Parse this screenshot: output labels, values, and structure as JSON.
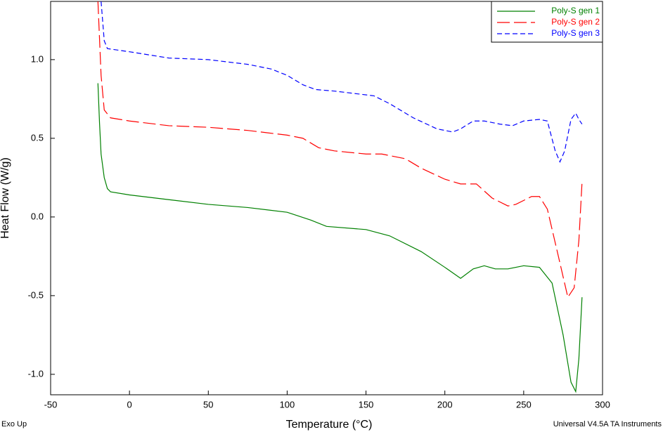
{
  "chart_data": {
    "type": "line",
    "xlabel": "Temperature (°C)",
    "ylabel": "Heat Flow (W/g)",
    "annotations": [
      "Exo Up",
      "Universal V4.5A TA Instruments"
    ],
    "xlim": [
      -50,
      300
    ],
    "xticks": [
      -50,
      0,
      50,
      100,
      150,
      200,
      250,
      300
    ],
    "ylim": [
      -1.13,
      1.37
    ],
    "yticks": [
      {
        "value": -1,
        "label": "-1.0"
      },
      -0.5,
      {
        "value": 0,
        "label": "0.0"
      },
      0.5,
      {
        "value": 1,
        "label": "1.0"
      }
    ],
    "legend": "upper right",
    "series": [
      {
        "name": "Poly-S gen 1",
        "color": "#008000",
        "line_style": "solid",
        "x": [
          -20,
          -19,
          -18,
          -16,
          -14,
          -12,
          0,
          25,
          50,
          75,
          100,
          115,
          125,
          150,
          165,
          185,
          200,
          210,
          218,
          225,
          232,
          240,
          250,
          260,
          268,
          275,
          280,
          283,
          285,
          287
        ],
        "values": [
          0.85,
          0.6,
          0.4,
          0.25,
          0.18,
          0.16,
          0.14,
          0.11,
          0.08,
          0.06,
          0.03,
          -0.02,
          -0.06,
          -0.08,
          -0.12,
          -0.22,
          -0.32,
          -0.39,
          -0.33,
          -0.31,
          -0.33,
          -0.33,
          -0.31,
          -0.32,
          -0.42,
          -0.75,
          -1.05,
          -1.11,
          -0.9,
          -0.51
        ]
      },
      {
        "name": "Poly-S gen 2",
        "color": "#ff0000",
        "line_style": "long-dash",
        "x": [
          -20,
          -18,
          -16,
          -12,
          0,
          25,
          50,
          75,
          100,
          110,
          120,
          130,
          150,
          160,
          175,
          185,
          200,
          210,
          220,
          230,
          240,
          245,
          255,
          260,
          265,
          272,
          278,
          282,
          285,
          287
        ],
        "values": [
          1.37,
          0.9,
          0.68,
          0.63,
          0.61,
          0.58,
          0.57,
          0.55,
          0.52,
          0.5,
          0.44,
          0.42,
          0.4,
          0.4,
          0.37,
          0.31,
          0.24,
          0.21,
          0.21,
          0.12,
          0.07,
          0.08,
          0.13,
          0.13,
          0.05,
          -0.25,
          -0.51,
          -0.45,
          -0.15,
          0.22
        ]
      },
      {
        "name": "Poly-S gen 3",
        "color": "#0000ff",
        "line_style": "dash",
        "x": [
          -18,
          -16,
          -14,
          0,
          25,
          50,
          75,
          90,
          100,
          110,
          118,
          130,
          155,
          165,
          180,
          195,
          205,
          210,
          218,
          225,
          235,
          243,
          250,
          260,
          265,
          270,
          273,
          276,
          280,
          283,
          285,
          287
        ],
        "values": [
          1.37,
          1.12,
          1.07,
          1.05,
          1.01,
          1.0,
          0.97,
          0.94,
          0.9,
          0.84,
          0.81,
          0.8,
          0.77,
          0.72,
          0.63,
          0.56,
          0.54,
          0.56,
          0.61,
          0.61,
          0.59,
          0.58,
          0.61,
          0.62,
          0.61,
          0.42,
          0.35,
          0.42,
          0.62,
          0.66,
          0.62,
          0.59
        ]
      }
    ]
  }
}
